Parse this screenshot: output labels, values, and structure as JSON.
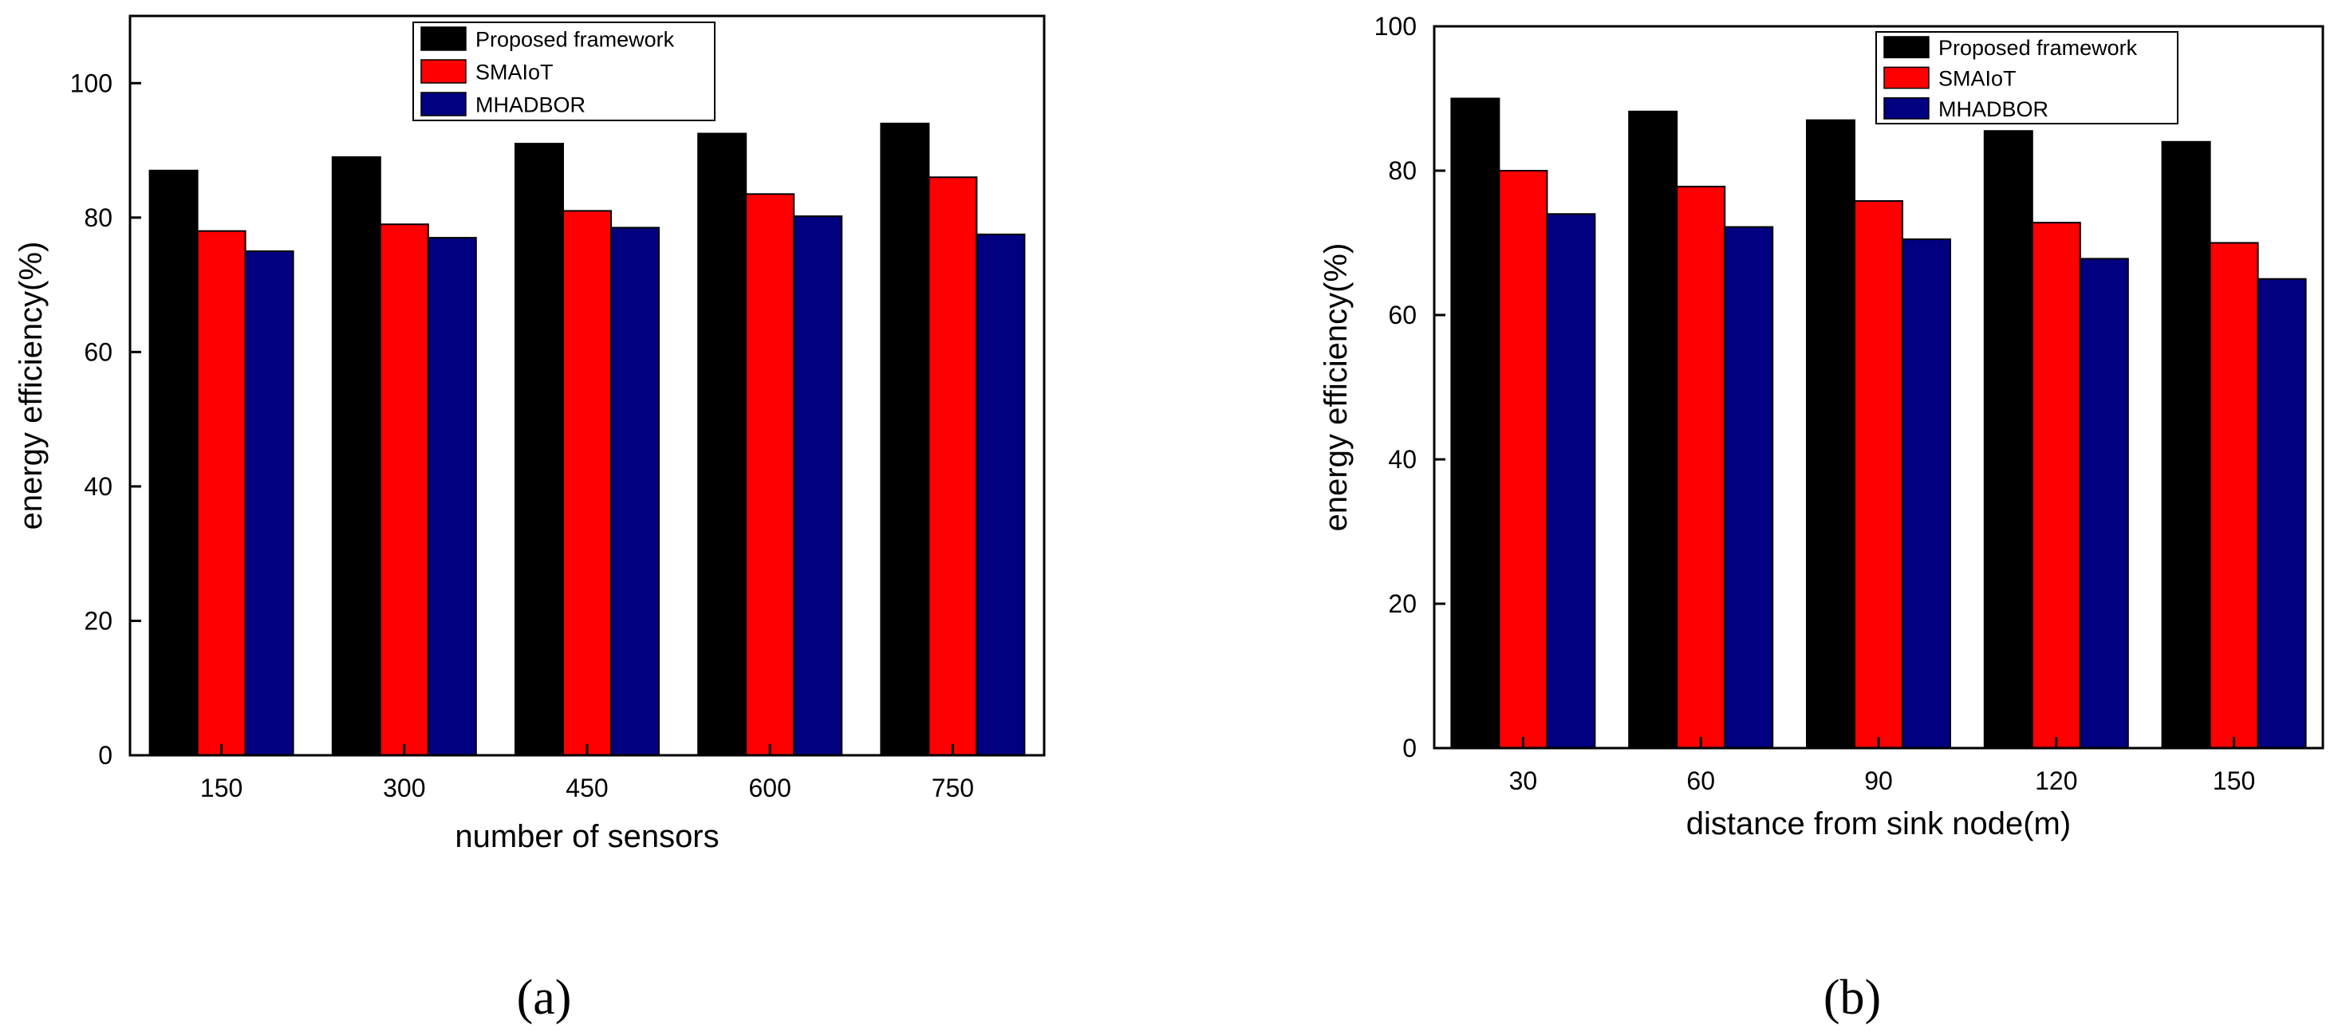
{
  "colors": {
    "series": [
      "#000000",
      "#ff0000",
      "#000080"
    ],
    "axis": "#000000",
    "background": "#ffffff"
  },
  "chart_data": [
    {
      "type": "bar",
      "panel_label": "(a)",
      "xlabel": "number of sensors",
      "ylabel": "energy efficiency(%)",
      "categories": [
        "150",
        "300",
        "450",
        "600",
        "750"
      ],
      "ylim": [
        0,
        110
      ],
      "yticks": [
        0,
        20,
        40,
        60,
        80,
        100
      ],
      "grid": false,
      "legend_position": "top-center",
      "series": [
        {
          "name": "Proposed framework",
          "values": [
            87,
            89,
            91,
            92.5,
            94
          ]
        },
        {
          "name": "SMAIoT",
          "values": [
            78,
            79,
            81,
            83.5,
            86
          ]
        },
        {
          "name": "MHADBOR",
          "values": [
            75,
            77,
            78.5,
            80.2,
            77.5
          ]
        }
      ]
    },
    {
      "type": "bar",
      "panel_label": "(b)",
      "xlabel": "distance from sink node(m)",
      "ylabel": "energy efficiency(%)",
      "categories": [
        "30",
        "60",
        "90",
        "120",
        "150"
      ],
      "ylim": [
        0,
        100
      ],
      "yticks": [
        0,
        20,
        40,
        60,
        80,
        100
      ],
      "grid": false,
      "legend_position": "top-right",
      "series": [
        {
          "name": "Proposed framework",
          "values": [
            90,
            88.2,
            87,
            85.5,
            84
          ]
        },
        {
          "name": "SMAIoT",
          "values": [
            80,
            77.8,
            75.8,
            72.8,
            70
          ]
        },
        {
          "name": "MHADBOR",
          "values": [
            74,
            72.2,
            70.5,
            67.8,
            65
          ]
        }
      ]
    }
  ]
}
